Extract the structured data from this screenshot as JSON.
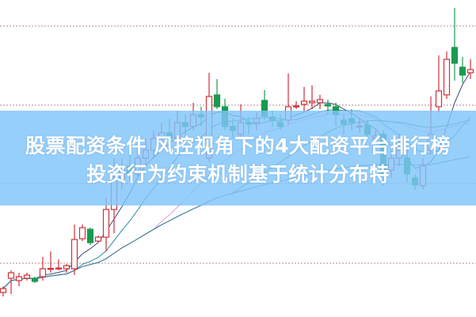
{
  "title": {
    "line1": "股票配资条件 风控视角下的4大配资平台排行榜",
    "line2": "投资行为约束机制基于统计分布特"
  },
  "colors": {
    "up": "#d0303a",
    "down": "#1a9a50",
    "grid": "#c8a0a0",
    "banner": "#80c4fa",
    "ma": [
      "#3a4a7a",
      "#2a8a9a",
      "#e29ae0",
      "#3a8a3a",
      "#3a7aa8"
    ]
  },
  "chart_data": {
    "type": "candlestick",
    "grid": true,
    "ylim": [
      0,
      400
    ],
    "moving_averages": [
      5,
      10,
      20,
      30,
      60
    ],
    "ohlc": [
      [
        30,
        38,
        25,
        35
      ],
      [
        48,
        58,
        28,
        55
      ],
      [
        45,
        55,
        38,
        50
      ],
      [
        48,
        55,
        45,
        52
      ],
      [
        48,
        50,
        42,
        44
      ],
      [
        50,
        75,
        45,
        60
      ],
      [
        60,
        82,
        55,
        60.5
      ],
      [
        60,
        72,
        58,
        61
      ],
      [
        60,
        66,
        55,
        64
      ],
      [
        60,
        116,
        52,
        97
      ],
      [
        98,
        116,
        95,
        112
      ],
      [
        110,
        112,
        90,
        93
      ],
      [
        95,
        102,
        94,
        100
      ],
      [
        100,
        150,
        82,
        135
      ],
      [
        135,
        200,
        105,
        175
      ],
      [
        175,
        200,
        160,
        190
      ],
      [
        190,
        205,
        170,
        180
      ],
      [
        180,
        215,
        175,
        200
      ],
      [
        200,
        225,
        190,
        210
      ],
      [
        210,
        235,
        200,
        225
      ],
      [
        225,
        245,
        215,
        232
      ],
      [
        232,
        250,
        220,
        225
      ],
      [
        225,
        260,
        218,
        245
      ],
      [
        245,
        255,
        225,
        240
      ],
      [
        240,
        270,
        235,
        255
      ],
      [
        255,
        265,
        240,
        252
      ],
      [
        200,
        308,
        195,
        278
      ],
      [
        280,
        300,
        262,
        265
      ],
      [
        265,
        275,
        235,
        240
      ],
      [
        240,
        250,
        225,
        235
      ],
      [
        230,
        268,
        225,
        245
      ],
      [
        245,
        252,
        230,
        243
      ],
      [
        245,
        258,
        235,
        250
      ],
      [
        273,
        286,
        248,
        253
      ],
      [
        252,
        260,
        240,
        248
      ],
      [
        245,
        255,
        236,
        240
      ],
      [
        248,
        307,
        242,
        265
      ],
      [
        265,
        272,
        262,
        266
      ],
      [
        268,
        290,
        258,
        272
      ],
      [
        270,
        292,
        262,
        272
      ],
      [
        270,
        280,
        262,
        274
      ],
      [
        268,
        274,
        255,
        266
      ],
      [
        265,
        270,
        240,
        255
      ],
      [
        248,
        255,
        230,
        243
      ],
      [
        250,
        262,
        235,
        245
      ],
      [
        240,
        250,
        232,
        240.5
      ],
      [
        242,
        248,
        225,
        230
      ],
      [
        225,
        235,
        220,
        228
      ],
      [
        230,
        235,
        165,
        180
      ],
      [
        185,
        210,
        175,
        200
      ],
      [
        200,
        230,
        190,
        210
      ],
      [
        200,
        215,
        170,
        180
      ],
      [
        175,
        180,
        160,
        166
      ],
      [
        165,
        200,
        160,
        190
      ],
      [
        210,
        278,
        205,
        230
      ],
      [
        265,
        330,
        258,
        285
      ],
      [
        280,
        335,
        275,
        325
      ],
      [
        340,
        390,
        298,
        320
      ],
      [
        315,
        328,
        295,
        305
      ],
      [
        308,
        325,
        300,
        312
      ]
    ]
  }
}
